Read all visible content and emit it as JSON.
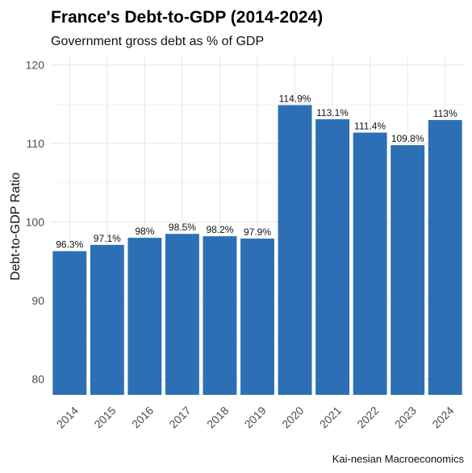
{
  "chart_data": {
    "type": "bar",
    "title": "France's Debt-to-GDP (2014-2024)",
    "subtitle": "Government gross debt as % of GDP",
    "ylabel": "Debt-to-GDP Ratio",
    "xlabel": "",
    "caption": "Kai-nesian Macroeconomics",
    "categories": [
      "2014",
      "2015",
      "2016",
      "2017",
      "2018",
      "2019",
      "2020",
      "2021",
      "2022",
      "2023",
      "2024"
    ],
    "values": [
      96.3,
      97.1,
      98.0,
      98.5,
      98.2,
      97.9,
      114.9,
      113.1,
      111.4,
      109.8,
      113.0
    ],
    "data_labels": [
      "96.3%",
      "97.1%",
      "98%",
      "98.5%",
      "98.2%",
      "97.9%",
      "114.9%",
      "113.1%",
      "111.4%",
      "109.8%",
      "113%"
    ],
    "y_ticks": [
      80,
      90,
      100,
      110,
      120
    ],
    "ylim": [
      78,
      121
    ],
    "grid": true,
    "legend": "none",
    "bar_color": "#2c6fb4"
  }
}
